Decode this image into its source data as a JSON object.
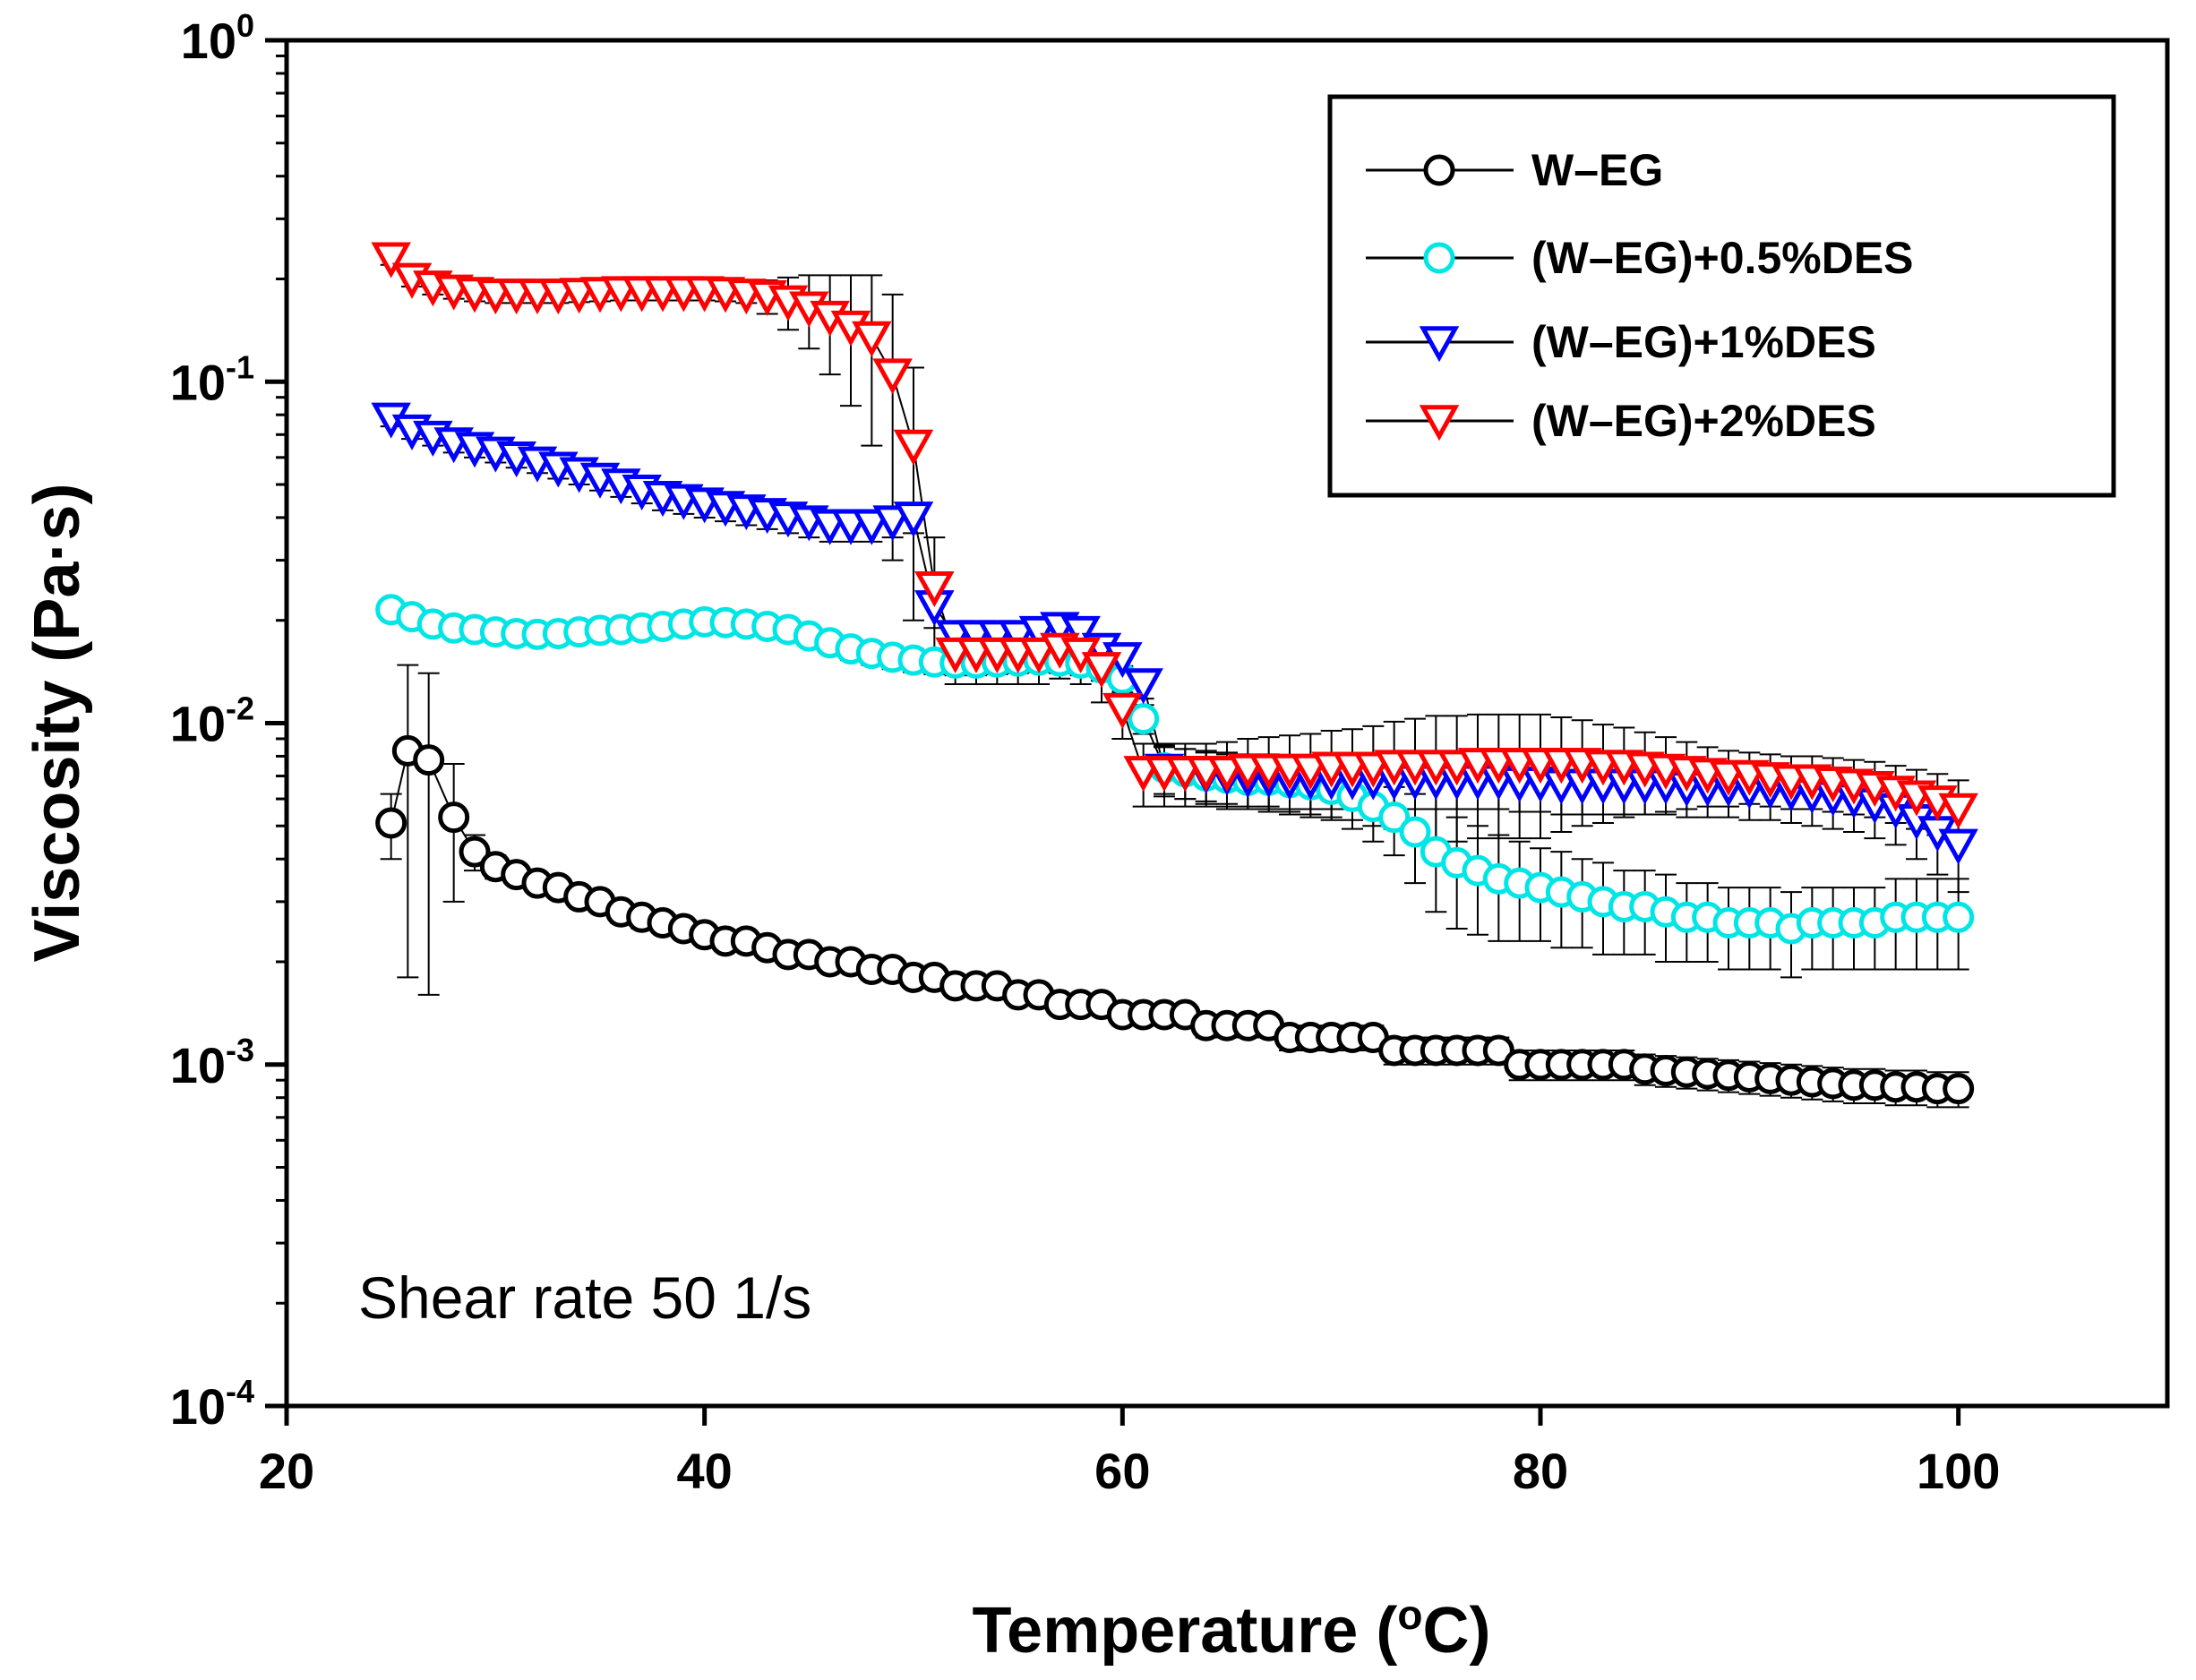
{
  "chart_data": {
    "type": "line",
    "title": "",
    "xlabel": "Temperature (",
    "xlabel_sup": "o",
    "xlabel_end": "C)",
    "ylabel": "Viscosity (Pa·s)",
    "xlim": [
      20,
      110
    ],
    "ylim": [
      0.0001,
      1
    ],
    "yscale": "log",
    "x_ticks": [
      20,
      40,
      60,
      80,
      100
    ],
    "x_tick_labels": [
      "20",
      "40",
      "60",
      "80",
      "100"
    ],
    "y_ticks": [
      0.0001,
      0.001,
      0.01,
      0.1,
      1
    ],
    "y_tick_base": "10",
    "y_tick_exponents": [
      "-4",
      "-3",
      "-2",
      "-1",
      "0"
    ],
    "annotation": "Shear rate 50 1/s",
    "legend_position": "top-right",
    "series": [
      {
        "name": "W–EG",
        "color": "#000000",
        "marker": "circle",
        "x": [
          25,
          25.8,
          26.8,
          28,
          29,
          30,
          31,
          32,
          33,
          34,
          35,
          36,
          37,
          38,
          39,
          40,
          41,
          42,
          43,
          44,
          45,
          46,
          47,
          48,
          49,
          50,
          51,
          52,
          53,
          54,
          55,
          56,
          57,
          58,
          59,
          60,
          61,
          62,
          63,
          64,
          65,
          66,
          67,
          68,
          69,
          70,
          71,
          72,
          73,
          74,
          75,
          76,
          77,
          78,
          79,
          80,
          81,
          82,
          83,
          84,
          85,
          86,
          87,
          88,
          89,
          90,
          91,
          92,
          93,
          94,
          95,
          96,
          97,
          98,
          99,
          100
        ],
        "y": [
          0.0051,
          0.0083,
          0.0078,
          0.0053,
          0.0042,
          0.0038,
          0.0036,
          0.0034,
          0.0033,
          0.0031,
          0.003,
          0.0028,
          0.0027,
          0.0026,
          0.0025,
          0.0024,
          0.0023,
          0.0023,
          0.0022,
          0.0021,
          0.0021,
          0.002,
          0.002,
          0.0019,
          0.0019,
          0.0018,
          0.0018,
          0.0017,
          0.0017,
          0.0017,
          0.0016,
          0.0016,
          0.0015,
          0.0015,
          0.0015,
          0.0014,
          0.0014,
          0.0014,
          0.0014,
          0.0013,
          0.0013,
          0.0013,
          0.0013,
          0.0012,
          0.0012,
          0.0012,
          0.0012,
          0.0012,
          0.0011,
          0.0011,
          0.0011,
          0.0011,
          0.0011,
          0.0011,
          0.001,
          0.001,
          0.001,
          0.001,
          0.001,
          0.001,
          0.00097,
          0.00096,
          0.00095,
          0.00094,
          0.00093,
          0.00092,
          0.00091,
          0.0009,
          0.00089,
          0.00088,
          0.00087,
          0.00087,
          0.00086,
          0.00086,
          0.00085,
          0.00085
        ],
        "err": [
          0.0011,
          0.0065,
          0.0062,
          0.0023,
          0.0005,
          0.0003,
          0.0002,
          0.0002,
          0.0002,
          0.0002,
          0.0002,
          0.0002,
          0.0002,
          0.0001,
          0.0001,
          0.0001,
          0.0001,
          0.0001,
          0.0001,
          0.0001,
          0.0001,
          0.0001,
          0.0001,
          0.0001,
          0.0001,
          0.0001,
          0.0001,
          0.0001,
          0.0001,
          0.0001,
          0.0001,
          0.0001,
          0.0001,
          0.0001,
          0.0001,
          0.0001,
          0.0001,
          0.0001,
          0.0001,
          0.0001,
          0.0001,
          0.0001,
          0.0001,
          0.0001,
          0.0001,
          0.0001,
          0.0001,
          0.0001,
          0.0001,
          0.0001,
          0.0001,
          0.0001,
          0.0001,
          0.0001,
          0.0001,
          0.0001,
          0.0001,
          0.0001,
          0.0001,
          0.0001,
          0.0001,
          0.0001,
          0.0001,
          0.0001,
          0.0001,
          0.0001,
          0.0001,
          0.0001,
          0.0001,
          0.0001,
          0.0001,
          0.0001,
          0.0001,
          0.0001,
          0.0001,
          0.0001
        ]
      },
      {
        "name": "(W–EG)+0.5%DES",
        "color": "#00e5e5",
        "marker": "circle",
        "x": [
          25,
          26,
          27,
          28,
          29,
          30,
          31,
          32,
          33,
          34,
          35,
          36,
          37,
          38,
          39,
          40,
          41,
          42,
          43,
          44,
          45,
          46,
          47,
          48,
          49,
          50,
          51,
          52,
          53,
          54,
          55,
          56,
          57,
          58,
          59,
          60,
          61,
          62,
          63,
          64,
          65,
          66,
          67,
          68,
          69,
          70,
          71,
          72,
          73,
          74,
          75,
          76,
          77,
          78,
          79,
          80,
          81,
          82,
          83,
          84,
          85,
          86,
          87,
          88,
          89,
          90,
          91,
          92,
          93,
          94,
          95,
          96,
          97,
          98,
          99,
          100
        ],
        "y": [
          0.0215,
          0.0205,
          0.0195,
          0.019,
          0.0188,
          0.0185,
          0.0183,
          0.0182,
          0.0183,
          0.0185,
          0.0187,
          0.0188,
          0.019,
          0.0192,
          0.0195,
          0.0198,
          0.0197,
          0.0195,
          0.0192,
          0.0188,
          0.018,
          0.0172,
          0.0165,
          0.016,
          0.0156,
          0.0153,
          0.0151,
          0.015,
          0.015,
          0.0151,
          0.0152,
          0.0153,
          0.0152,
          0.015,
          0.0145,
          0.0135,
          0.0103,
          0.0074,
          0.0072,
          0.007,
          0.0069,
          0.0068,
          0.0068,
          0.0067,
          0.0066,
          0.0064,
          0.0061,
          0.0057,
          0.0053,
          0.0048,
          0.0042,
          0.0039,
          0.0037,
          0.0035,
          0.0034,
          0.0033,
          0.0032,
          0.0031,
          0.003,
          0.0029,
          0.0029,
          0.0028,
          0.0027,
          0.0027,
          0.0026,
          0.0026,
          0.0026,
          0.0025,
          0.0026,
          0.0026,
          0.0026,
          0.0026,
          0.0027,
          0.0027,
          0.0027,
          0.0027
        ],
        "err": [
          0.001,
          0.001,
          0.001,
          0.001,
          0.001,
          0.001,
          0.001,
          0.001,
          0.001,
          0.001,
          0.001,
          0.001,
          0.001,
          0.001,
          0.001,
          0.0012,
          0.0012,
          0.0012,
          0.0012,
          0.0012,
          0.0012,
          0.0012,
          0.0012,
          0.0012,
          0.0012,
          0.0012,
          0.0012,
          0.0012,
          0.0012,
          0.0012,
          0.0012,
          0.0012,
          0.0012,
          0.0012,
          0.0012,
          0.0012,
          0.001,
          0.0012,
          0.0012,
          0.0012,
          0.0012,
          0.0012,
          0.0012,
          0.0012,
          0.0012,
          0.0012,
          0.0012,
          0.0012,
          0.0012,
          0.0014,
          0.0014,
          0.0014,
          0.0013,
          0.0012,
          0.0011,
          0.001,
          0.001,
          0.0009,
          0.0009,
          0.0008,
          0.0008,
          0.0008,
          0.0007,
          0.0007,
          0.0007,
          0.0007,
          0.0007,
          0.0007,
          0.0007,
          0.0007,
          0.0007,
          0.0007,
          0.0008,
          0.0008,
          0.0008,
          0.0008
        ]
      },
      {
        "name": "(W–EG)+1%DES",
        "color": "#0000ff",
        "marker": "triangle-down",
        "x": [
          25,
          26,
          27,
          28,
          29,
          30,
          31,
          32,
          33,
          34,
          35,
          36,
          37,
          38,
          39,
          40,
          41,
          42,
          43,
          44,
          45,
          46,
          47,
          48,
          49,
          50,
          51,
          52,
          53,
          54,
          55,
          56,
          57,
          58,
          59,
          60,
          61,
          62,
          63,
          64,
          65,
          66,
          67,
          68,
          69,
          70,
          71,
          72,
          73,
          74,
          75,
          76,
          77,
          78,
          79,
          80,
          81,
          82,
          83,
          84,
          85,
          86,
          87,
          88,
          89,
          90,
          91,
          92,
          93,
          94,
          95,
          96,
          97,
          98,
          99,
          100
        ],
        "y": [
          0.078,
          0.072,
          0.069,
          0.066,
          0.064,
          0.062,
          0.06,
          0.058,
          0.056,
          0.054,
          0.052,
          0.05,
          0.048,
          0.046,
          0.045,
          0.044,
          0.043,
          0.042,
          0.041,
          0.04,
          0.039,
          0.038,
          0.038,
          0.038,
          0.039,
          0.04,
          0.022,
          0.018,
          0.018,
          0.018,
          0.018,
          0.0185,
          0.019,
          0.0185,
          0.0165,
          0.0155,
          0.013,
          0.0073,
          0.0072,
          0.0071,
          0.007,
          0.0069,
          0.0069,
          0.0068,
          0.0068,
          0.0068,
          0.0068,
          0.0068,
          0.0068,
          0.0068,
          0.0068,
          0.0068,
          0.0068,
          0.0068,
          0.0067,
          0.0067,
          0.0066,
          0.0066,
          0.0066,
          0.0066,
          0.0066,
          0.0066,
          0.0065,
          0.0065,
          0.0065,
          0.0064,
          0.0064,
          0.0063,
          0.0062,
          0.0061,
          0.006,
          0.0058,
          0.0056,
          0.0052,
          0.0048,
          0.0044
        ],
        "err": [
          0.004,
          0.004,
          0.004,
          0.004,
          0.004,
          0.004,
          0.004,
          0.004,
          0.004,
          0.004,
          0.004,
          0.004,
          0.004,
          0.004,
          0.004,
          0.004,
          0.004,
          0.004,
          0.004,
          0.004,
          0.004,
          0.004,
          0.004,
          0.004,
          0.004,
          0.004,
          0.003,
          0.0015,
          0.0015,
          0.0015,
          0.0015,
          0.0015,
          0.0015,
          0.0015,
          0.0015,
          0.0015,
          0.0012,
          0.0012,
          0.0012,
          0.0012,
          0.0012,
          0.0012,
          0.0012,
          0.0012,
          0.0012,
          0.0012,
          0.0012,
          0.0012,
          0.0012,
          0.0012,
          0.0012,
          0.0012,
          0.0012,
          0.0012,
          0.0012,
          0.0012,
          0.0012,
          0.0012,
          0.0012,
          0.0012,
          0.0012,
          0.0012,
          0.0012,
          0.0012,
          0.0012,
          0.0012,
          0.0012,
          0.0012,
          0.0012,
          0.0012,
          0.0012,
          0.0012,
          0.0012,
          0.0012,
          0.0012,
          0.0012
        ]
      },
      {
        "name": "(W–EG)+2%DES",
        "color": "#ff0000",
        "marker": "triangle-down",
        "x": [
          25,
          26,
          27,
          28,
          29,
          30,
          31,
          32,
          33,
          34,
          35,
          36,
          37,
          38,
          39,
          40,
          41,
          42,
          43,
          44,
          45,
          46,
          47,
          48,
          49,
          50,
          51,
          52,
          53,
          54,
          55,
          56,
          57,
          58,
          59,
          60,
          61,
          62,
          63,
          64,
          65,
          66,
          67,
          68,
          69,
          70,
          71,
          72,
          73,
          74,
          75,
          76,
          77,
          78,
          79,
          80,
          81,
          82,
          83,
          84,
          85,
          86,
          87,
          88,
          89,
          90,
          91,
          92,
          93,
          94,
          95,
          96,
          97,
          98,
          99,
          100
        ],
        "y": [
          0.23,
          0.2,
          0.19,
          0.185,
          0.182,
          0.18,
          0.18,
          0.18,
          0.18,
          0.181,
          0.182,
          0.183,
          0.183,
          0.183,
          0.183,
          0.183,
          0.182,
          0.18,
          0.178,
          0.172,
          0.165,
          0.155,
          0.145,
          0.135,
          0.105,
          0.065,
          0.025,
          0.016,
          0.016,
          0.016,
          0.016,
          0.016,
          0.0165,
          0.016,
          0.0145,
          0.011,
          0.0072,
          0.0072,
          0.0072,
          0.0072,
          0.0072,
          0.0073,
          0.0073,
          0.0073,
          0.0073,
          0.0074,
          0.0074,
          0.0074,
          0.0075,
          0.0075,
          0.0075,
          0.0075,
          0.0076,
          0.0076,
          0.0076,
          0.0076,
          0.0076,
          0.0076,
          0.0075,
          0.0075,
          0.0074,
          0.0073,
          0.0072,
          0.0071,
          0.007,
          0.007,
          0.0069,
          0.0068,
          0.0068,
          0.0067,
          0.0066,
          0.0065,
          0.0063,
          0.0061,
          0.0059,
          0.0056
        ],
        "err": [
          0.01,
          0.01,
          0.01,
          0.01,
          0.01,
          0.01,
          0.01,
          0.01,
          0.01,
          0.01,
          0.01,
          0.01,
          0.01,
          0.01,
          0.01,
          0.01,
          0.01,
          0.01,
          0.02,
          0.03,
          0.04,
          0.05,
          0.06,
          0.07,
          0.075,
          0.045,
          0.01,
          0.003,
          0.003,
          0.003,
          0.003,
          0.003,
          0.003,
          0.003,
          0.003,
          0.002,
          0.0015,
          0.0015,
          0.0015,
          0.0015,
          0.0016,
          0.0017,
          0.0018,
          0.0019,
          0.002,
          0.0021,
          0.0022,
          0.0024,
          0.0026,
          0.0028,
          0.003,
          0.003,
          0.003,
          0.003,
          0.003,
          0.003,
          0.0028,
          0.0026,
          0.0024,
          0.0022,
          0.002,
          0.0018,
          0.0016,
          0.0014,
          0.0013,
          0.0012,
          0.0012,
          0.0012,
          0.0012,
          0.0012,
          0.0012,
          0.0012,
          0.0012,
          0.0012,
          0.0012,
          0.0012
        ]
      }
    ]
  }
}
